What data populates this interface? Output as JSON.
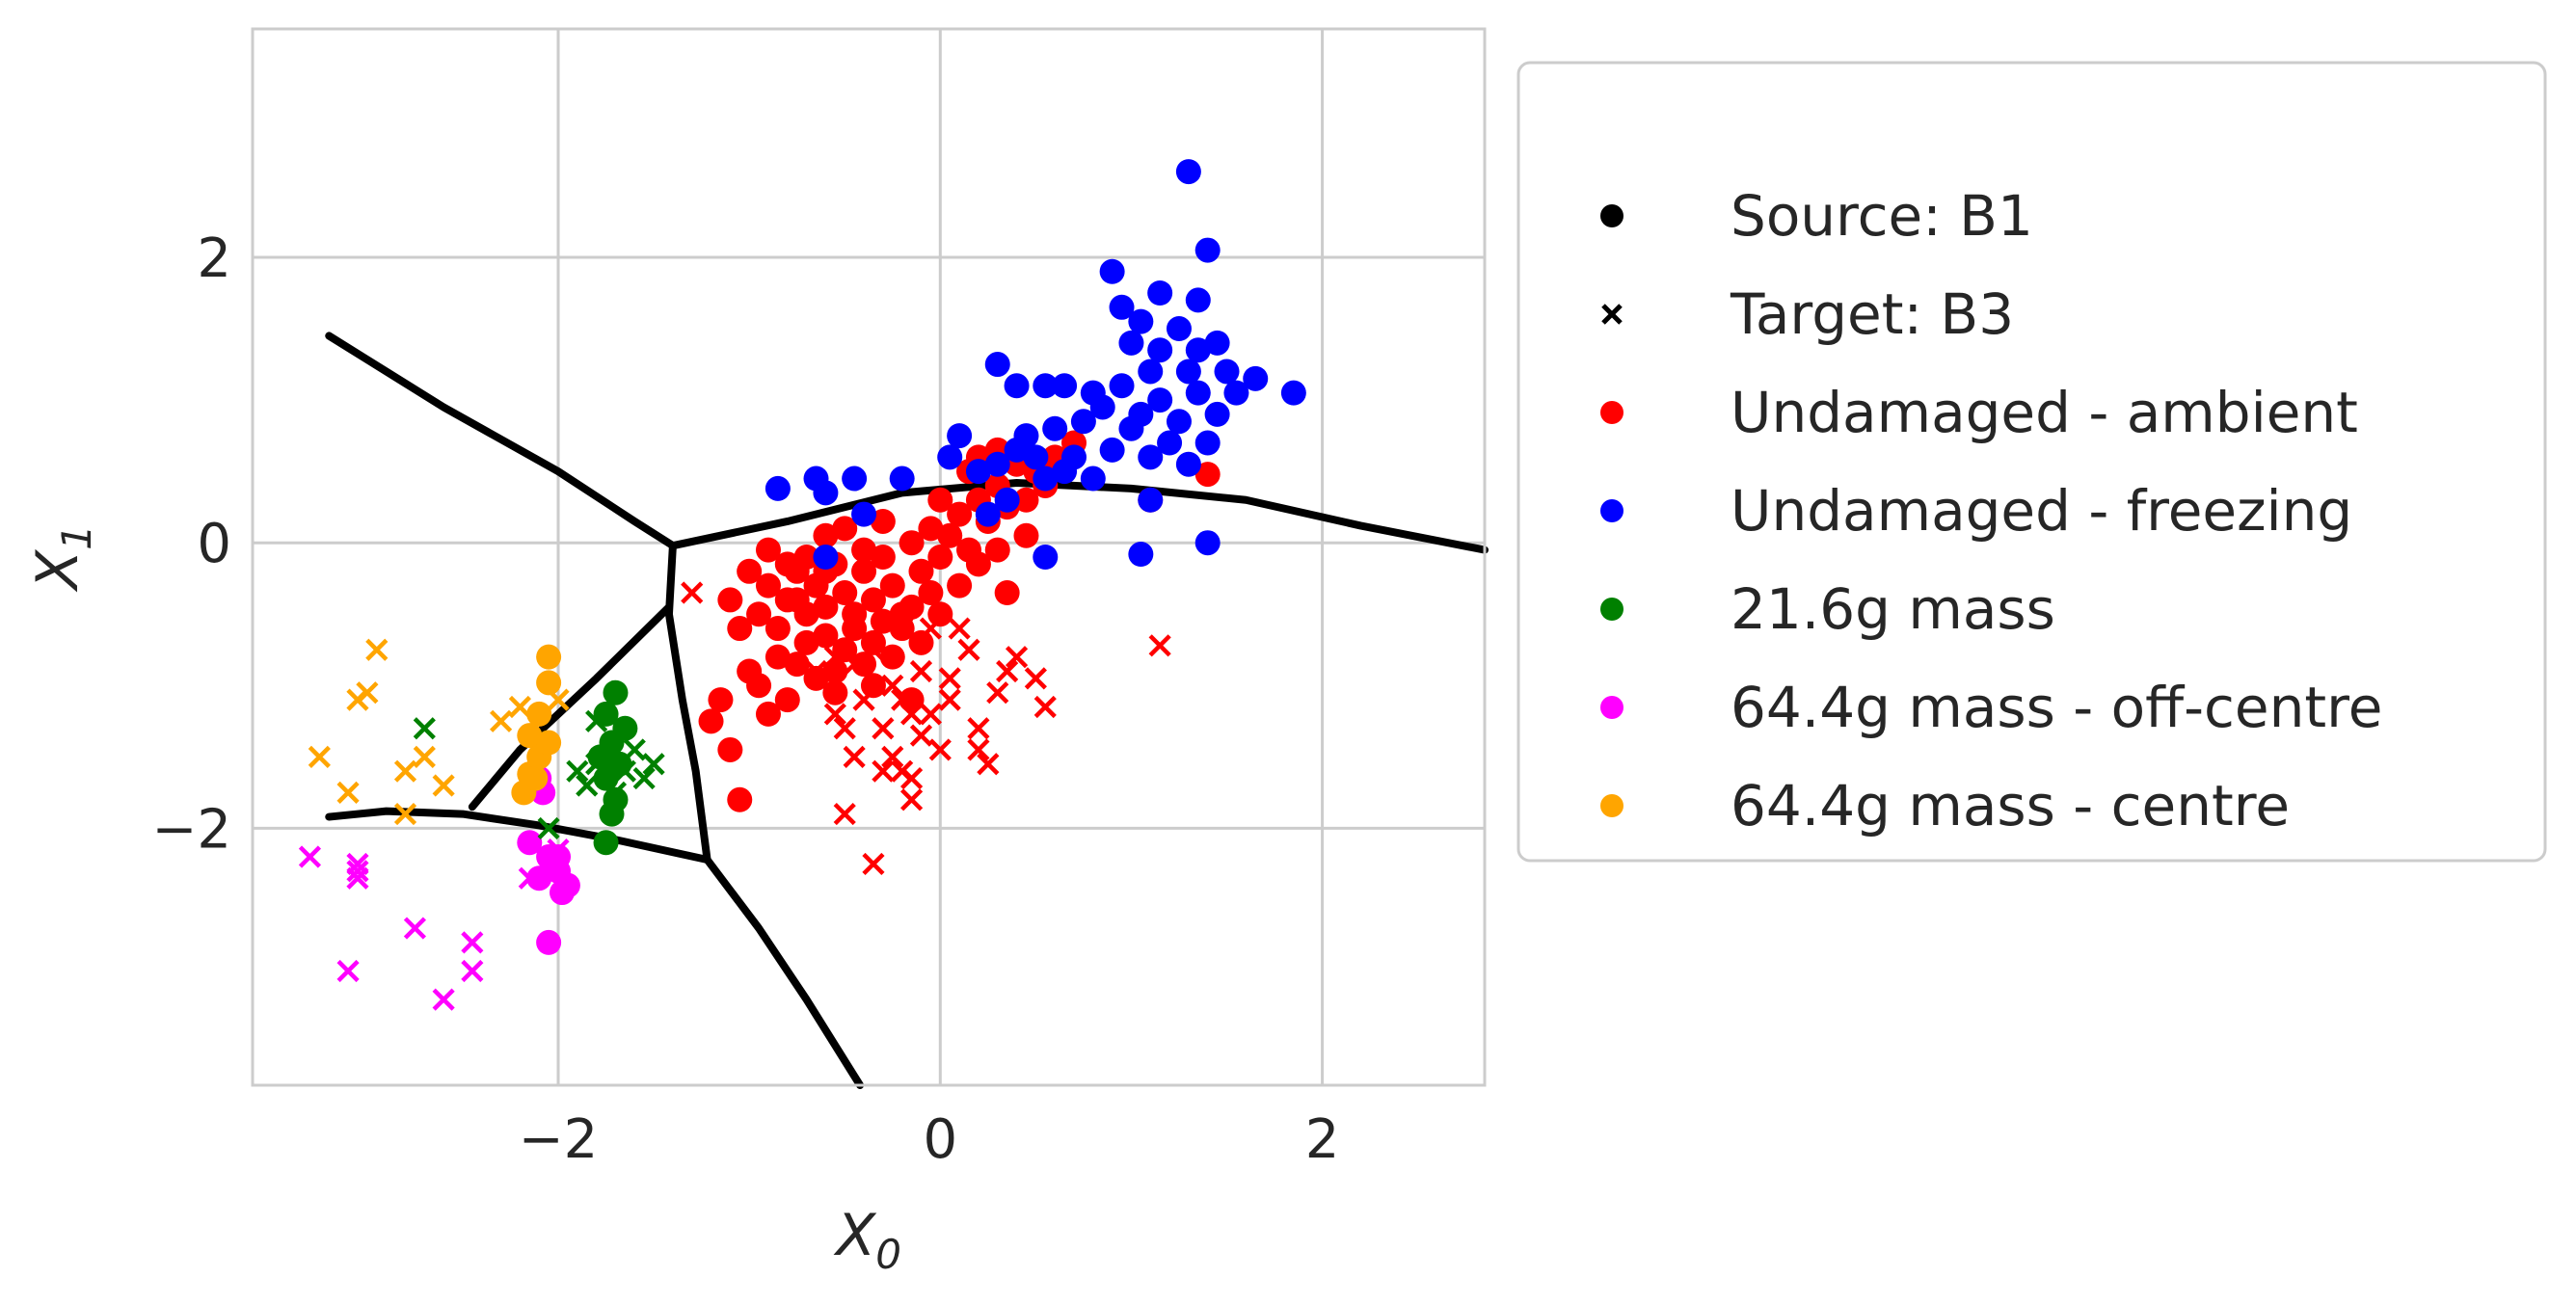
{
  "chart_data": {
    "type": "scatter",
    "title": "",
    "xlabel": "X",
    "xlabel_sub": "0",
    "ylabel": "X",
    "ylabel_sub": "1",
    "xlim": [
      -3.6,
      2.85
    ],
    "ylim": [
      -3.8,
      3.6
    ],
    "xticks": [
      -2,
      0,
      2
    ],
    "yticks": [
      -2,
      0,
      2
    ],
    "xtick_labels": [
      "−2",
      "0",
      "2"
    ],
    "ytick_labels": [
      "−2",
      "0",
      "2"
    ],
    "grid": true,
    "legend_position": "outside-right",
    "legend": [
      {
        "label": "Source: B1",
        "marker": "dot",
        "color": "#000000"
      },
      {
        "label": "Target: B3",
        "marker": "x",
        "color": "#000000"
      },
      {
        "label": "Undamaged - ambient",
        "marker": "dot",
        "color": "#ff0000"
      },
      {
        "label": "Undamaged - freezing",
        "marker": "dot",
        "color": "#0000ff"
      },
      {
        "label": "21.6g mass",
        "marker": "dot",
        "color": "#008000"
      },
      {
        "label": "64.4g mass -  off-centre",
        "marker": "dot",
        "color": "#ff00ff"
      },
      {
        "label": "64.4g mass - centre",
        "marker": "dot",
        "color": "#ffa500"
      }
    ],
    "boundaries": [
      {
        "name": "boundary-upper-left",
        "points": [
          [
            -3.2,
            1.45
          ],
          [
            -2.6,
            0.95
          ],
          [
            -2.0,
            0.5
          ],
          [
            -1.6,
            0.15
          ],
          [
            -1.4,
            -0.02
          ]
        ]
      },
      {
        "name": "boundary-top-right",
        "points": [
          [
            -1.4,
            -0.02
          ],
          [
            -0.8,
            0.15
          ],
          [
            -0.2,
            0.35
          ],
          [
            0.4,
            0.42
          ],
          [
            1.0,
            0.38
          ],
          [
            1.6,
            0.3
          ],
          [
            2.2,
            0.12
          ],
          [
            2.85,
            -0.05
          ]
        ]
      },
      {
        "name": "boundary-center-vertical",
        "points": [
          [
            -1.4,
            -0.02
          ],
          [
            -1.42,
            -0.5
          ],
          [
            -1.35,
            -1.1
          ],
          [
            -1.28,
            -1.6
          ],
          [
            -1.22,
            -2.22
          ]
        ]
      },
      {
        "name": "boundary-center-diagonal",
        "points": [
          [
            -1.42,
            -0.45
          ],
          [
            -1.8,
            -0.95
          ],
          [
            -2.2,
            -1.45
          ],
          [
            -2.45,
            -1.85
          ]
        ]
      },
      {
        "name": "boundary-lower-left",
        "points": [
          [
            -3.2,
            -1.92
          ],
          [
            -2.9,
            -1.88
          ],
          [
            -2.5,
            -1.9
          ],
          [
            -2.1,
            -1.98
          ],
          [
            -1.7,
            -2.08
          ],
          [
            -1.22,
            -2.22
          ]
        ]
      },
      {
        "name": "boundary-lower-right",
        "points": [
          [
            -1.22,
            -2.22
          ],
          [
            -0.95,
            -2.7
          ],
          [
            -0.7,
            -3.2
          ],
          [
            -0.42,
            -3.8
          ]
        ]
      }
    ],
    "series": [
      {
        "name": "Undamaged - ambient (source)",
        "marker": "dot",
        "color": "#ff0000",
        "points": [
          [
            -1.1,
            -0.4
          ],
          [
            -1.05,
            -0.6
          ],
          [
            -0.95,
            -0.5
          ],
          [
            -0.9,
            -0.3
          ],
          [
            -0.85,
            -0.6
          ],
          [
            -0.8,
            -0.4
          ],
          [
            -0.75,
            -0.2
          ],
          [
            -0.7,
            -0.5
          ],
          [
            -0.65,
            -0.3
          ],
          [
            -0.6,
            -0.45
          ],
          [
            -0.55,
            -0.15
          ],
          [
            -0.5,
            -0.35
          ],
          [
            -0.45,
            -0.5
          ],
          [
            -0.4,
            -0.2
          ],
          [
            -0.35,
            -0.4
          ],
          [
            -0.3,
            -0.1
          ],
          [
            -0.25,
            -0.3
          ],
          [
            -0.2,
            -0.5
          ],
          [
            -0.15,
            0.0
          ],
          [
            -0.1,
            -0.2
          ],
          [
            -0.05,
            0.1
          ],
          [
            0.0,
            -0.1
          ],
          [
            0.05,
            0.05
          ],
          [
            0.1,
            0.2
          ],
          [
            0.15,
            -0.05
          ],
          [
            0.2,
            0.3
          ],
          [
            0.25,
            0.15
          ],
          [
            0.3,
            0.4
          ],
          [
            0.35,
            0.25
          ],
          [
            0.4,
            0.55
          ],
          [
            0.45,
            0.3
          ],
          [
            0.5,
            0.5
          ],
          [
            0.55,
            0.4
          ],
          [
            0.6,
            0.6
          ],
          [
            0.7,
            0.7
          ],
          [
            -1.2,
            -1.25
          ],
          [
            -1.15,
            -1.1
          ],
          [
            -1.1,
            -1.45
          ],
          [
            -1.05,
            -1.8
          ],
          [
            -1.0,
            -0.9
          ],
          [
            -0.95,
            -1.0
          ],
          [
            -0.9,
            -1.2
          ],
          [
            -0.85,
            -0.8
          ],
          [
            -0.8,
            -1.1
          ],
          [
            -0.75,
            -0.85
          ],
          [
            -0.7,
            -0.7
          ],
          [
            -0.65,
            -0.95
          ],
          [
            -0.6,
            -0.65
          ],
          [
            -0.55,
            -0.9
          ],
          [
            -0.5,
            -0.75
          ],
          [
            -0.45,
            -0.6
          ],
          [
            -0.4,
            -0.85
          ],
          [
            -0.35,
            -0.7
          ],
          [
            -0.3,
            -0.55
          ],
          [
            -0.25,
            -0.8
          ],
          [
            -0.2,
            -0.6
          ],
          [
            -0.15,
            -0.45
          ],
          [
            -0.1,
            -0.7
          ],
          [
            -0.05,
            -0.35
          ],
          [
            0.0,
            -0.5
          ],
          [
            0.1,
            -0.3
          ],
          [
            0.2,
            -0.15
          ],
          [
            0.3,
            -0.05
          ],
          [
            0.35,
            -0.35
          ],
          [
            0.45,
            0.05
          ],
          [
            0.2,
            0.6
          ],
          [
            0.3,
            0.65
          ],
          [
            0.15,
            0.5
          ],
          [
            -0.5,
            0.1
          ],
          [
            -0.6,
            0.05
          ],
          [
            -0.7,
            -0.1
          ],
          [
            -0.8,
            -0.15
          ],
          [
            -0.9,
            -0.05
          ],
          [
            -1.0,
            -0.2
          ],
          [
            -0.3,
            0.15
          ],
          [
            0.0,
            0.3
          ],
          [
            1.4,
            0.48
          ],
          [
            1.1,
            0.3
          ],
          [
            -0.55,
            -1.05
          ],
          [
            -0.35,
            -1.0
          ],
          [
            -0.15,
            -1.1
          ],
          [
            -0.75,
            -0.4
          ],
          [
            -0.6,
            -0.2
          ],
          [
            -0.4,
            -0.05
          ]
        ]
      },
      {
        "name": "Undamaged - freezing (source)",
        "marker": "dot",
        "color": "#0000ff",
        "points": [
          [
            1.3,
            2.6
          ],
          [
            1.4,
            2.05
          ],
          [
            0.9,
            1.9
          ],
          [
            1.15,
            1.75
          ],
          [
            1.35,
            1.7
          ],
          [
            0.95,
            1.65
          ],
          [
            1.05,
            1.55
          ],
          [
            1.25,
            1.5
          ],
          [
            1.0,
            1.4
          ],
          [
            1.15,
            1.35
          ],
          [
            1.35,
            1.35
          ],
          [
            1.45,
            1.4
          ],
          [
            1.1,
            1.2
          ],
          [
            1.3,
            1.2
          ],
          [
            1.5,
            1.2
          ],
          [
            1.65,
            1.15
          ],
          [
            0.95,
            1.1
          ],
          [
            1.15,
            1.0
          ],
          [
            1.35,
            1.05
          ],
          [
            1.55,
            1.05
          ],
          [
            1.05,
            0.9
          ],
          [
            1.25,
            0.85
          ],
          [
            1.45,
            0.9
          ],
          [
            0.85,
            0.95
          ],
          [
            1.0,
            0.8
          ],
          [
            1.2,
            0.7
          ],
          [
            1.4,
            0.7
          ],
          [
            0.75,
            0.85
          ],
          [
            0.6,
            0.8
          ],
          [
            0.9,
            0.65
          ],
          [
            1.1,
            0.6
          ],
          [
            1.3,
            0.55
          ],
          [
            0.7,
            0.6
          ],
          [
            0.45,
            0.75
          ],
          [
            0.3,
            0.55
          ],
          [
            0.5,
            0.6
          ],
          [
            0.65,
            0.5
          ],
          [
            0.8,
            0.45
          ],
          [
            0.55,
            0.45
          ],
          [
            0.4,
            0.65
          ],
          [
            0.1,
            0.75
          ],
          [
            0.05,
            0.6
          ],
          [
            0.2,
            0.5
          ],
          [
            0.35,
            0.3
          ],
          [
            0.25,
            0.2
          ],
          [
            0.3,
            1.25
          ],
          [
            0.4,
            1.1
          ],
          [
            0.55,
            1.1
          ],
          [
            0.65,
            1.1
          ],
          [
            0.8,
            1.05
          ],
          [
            1.85,
            1.05
          ],
          [
            1.1,
            0.3
          ],
          [
            0.55,
            -0.1
          ],
          [
            1.05,
            -0.08
          ],
          [
            1.4,
            0.0
          ],
          [
            -0.85,
            0.38
          ],
          [
            -0.65,
            0.45
          ],
          [
            -0.45,
            0.45
          ],
          [
            -0.6,
            0.35
          ],
          [
            -0.4,
            0.2
          ],
          [
            -0.2,
            0.45
          ],
          [
            -0.6,
            -0.1
          ]
        ]
      },
      {
        "name": "21.6g mass (source)",
        "marker": "dot",
        "color": "#008000",
        "points": [
          [
            -1.7,
            -1.05
          ],
          [
            -1.75,
            -1.2
          ],
          [
            -1.65,
            -1.3
          ],
          [
            -1.72,
            -1.4
          ],
          [
            -1.68,
            -1.55
          ],
          [
            -1.75,
            -1.65
          ],
          [
            -1.7,
            -1.8
          ],
          [
            -1.72,
            -1.9
          ],
          [
            -1.75,
            -2.1
          ],
          [
            -1.78,
            -1.5
          ]
        ]
      },
      {
        "name": "64.4g mass -  off-centre (source)",
        "marker": "dot",
        "color": "#ff00ff",
        "points": [
          [
            -2.0,
            -2.3
          ],
          [
            -2.05,
            -2.2
          ],
          [
            -1.95,
            -2.4
          ],
          [
            -2.1,
            -2.35
          ],
          [
            -2.0,
            -2.2
          ],
          [
            -1.98,
            -2.45
          ],
          [
            -2.15,
            -2.1
          ],
          [
            -2.05,
            -2.8
          ],
          [
            -2.1,
            -1.65
          ],
          [
            -2.08,
            -1.75
          ]
        ]
      },
      {
        "name": "64.4g mass - centre (source)",
        "marker": "dot",
        "color": "#ffa500",
        "points": [
          [
            -2.05,
            -0.8
          ],
          [
            -2.05,
            -0.98
          ],
          [
            -2.1,
            -1.2
          ],
          [
            -2.15,
            -1.35
          ],
          [
            -2.1,
            -1.5
          ],
          [
            -2.15,
            -1.62
          ],
          [
            -2.18,
            -1.75
          ],
          [
            -2.05,
            -1.4
          ],
          [
            -2.12,
            -1.65
          ]
        ]
      },
      {
        "name": "Undamaged - ambient (target)",
        "marker": "x",
        "color": "#ff0000",
        "points": [
          [
            -1.3,
            -0.35
          ],
          [
            1.15,
            -0.72
          ],
          [
            -0.5,
            -1.9
          ],
          [
            -0.35,
            -2.25
          ],
          [
            -0.25,
            -1.5
          ],
          [
            -0.2,
            -1.6
          ],
          [
            -0.15,
            -1.8
          ],
          [
            -0.1,
            -1.35
          ],
          [
            -0.05,
            -1.2
          ],
          [
            0.0,
            -1.45
          ],
          [
            0.05,
            -1.1
          ],
          [
            -0.3,
            -1.3
          ],
          [
            -0.4,
            -1.1
          ],
          [
            -0.45,
            -1.5
          ],
          [
            -0.55,
            -1.2
          ],
          [
            -0.2,
            -1.1
          ],
          [
            -0.1,
            -0.9
          ],
          [
            0.2,
            -1.3
          ],
          [
            0.3,
            -1.05
          ],
          [
            0.35,
            -0.9
          ],
          [
            0.4,
            -0.8
          ],
          [
            0.5,
            -0.95
          ],
          [
            0.55,
            -1.15
          ],
          [
            0.25,
            -1.55
          ],
          [
            0.2,
            -1.45
          ],
          [
            -0.15,
            -1.2
          ],
          [
            0.1,
            -0.6
          ],
          [
            0.15,
            -0.75
          ],
          [
            -0.05,
            -0.6
          ],
          [
            -0.55,
            -0.8
          ],
          [
            -0.45,
            -0.85
          ],
          [
            -0.35,
            -0.75
          ],
          [
            -0.65,
            -0.9
          ],
          [
            -0.25,
            -1.0
          ],
          [
            0.05,
            -0.95
          ],
          [
            -0.5,
            -1.3
          ],
          [
            -0.3,
            -1.6
          ],
          [
            -0.15,
            -1.65
          ]
        ]
      },
      {
        "name": "21.6g mass (target)",
        "marker": "x",
        "color": "#008000",
        "points": [
          [
            -2.7,
            -1.3
          ],
          [
            -1.9,
            -1.6
          ],
          [
            -1.85,
            -1.7
          ],
          [
            -1.8,
            -1.55
          ],
          [
            -1.7,
            -1.75
          ],
          [
            -1.65,
            -1.6
          ],
          [
            -1.6,
            -1.45
          ],
          [
            -1.55,
            -1.65
          ],
          [
            -1.5,
            -1.55
          ],
          [
            -1.8,
            -1.25
          ],
          [
            -2.05,
            -2.0
          ]
        ]
      },
      {
        "name": "64.4g mass -  off-centre (target)",
        "marker": "x",
        "color": "#ff00ff",
        "points": [
          [
            -3.3,
            -2.2
          ],
          [
            -3.05,
            -2.25
          ],
          [
            -3.05,
            -2.35
          ],
          [
            -3.1,
            -3.0
          ],
          [
            -2.75,
            -2.7
          ],
          [
            -2.6,
            -3.2
          ],
          [
            -2.45,
            -2.8
          ],
          [
            -2.45,
            -3.0
          ],
          [
            -2.0,
            -2.15
          ],
          [
            -2.15,
            -2.35
          ],
          [
            -3.05,
            -2.3
          ]
        ]
      },
      {
        "name": "64.4g mass - centre (target)",
        "marker": "x",
        "color": "#ffa500",
        "points": [
          [
            -2.95,
            -0.75
          ],
          [
            -3.0,
            -1.05
          ],
          [
            -3.05,
            -1.1
          ],
          [
            -3.25,
            -1.5
          ],
          [
            -3.1,
            -1.75
          ],
          [
            -2.8,
            -1.6
          ],
          [
            -2.7,
            -1.5
          ],
          [
            -2.6,
            -1.7
          ],
          [
            -2.8,
            -1.9
          ],
          [
            -2.2,
            -1.15
          ],
          [
            -2.3,
            -1.25
          ],
          [
            -2.0,
            -1.1
          ]
        ]
      }
    ]
  }
}
